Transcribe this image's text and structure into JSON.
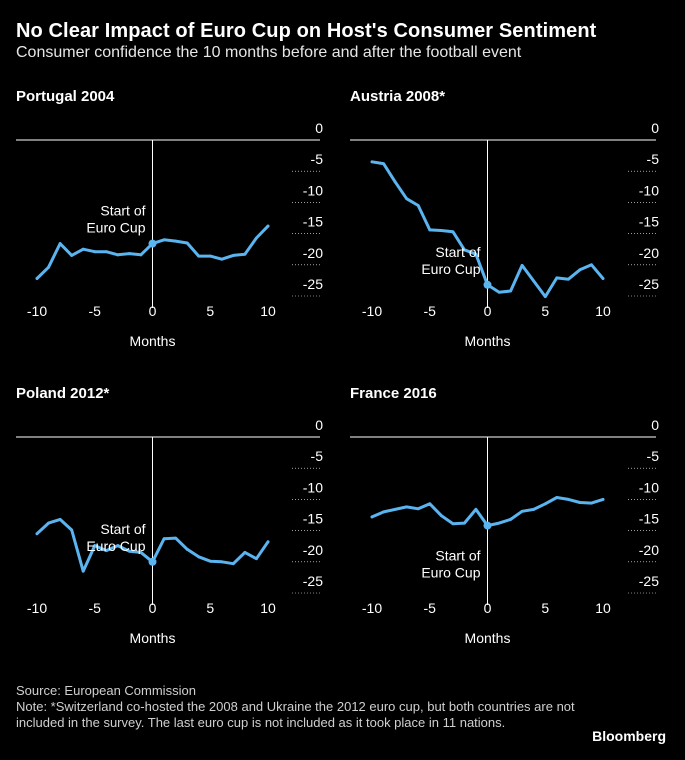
{
  "header": {
    "title": "No Clear Impact of Euro Cup on Host's Consumer Sentiment",
    "subtitle": "Consumer confidence the 10 months before and after the football event"
  },
  "footer": {
    "source": "Source: European Commission",
    "note": "Note: *Switzerland co-hosted the 2008 and Ukraine the 2012 euro cup, but both countries are not included in the survey. The last euro cup is not included as it took place in 11 nations.",
    "brand": "Bloomberg"
  },
  "colors": {
    "background": "#000000",
    "line": "#5ab4f0",
    "axis": "#ffffff",
    "grid": "#ffffff"
  },
  "chart_data": [
    {
      "type": "line",
      "title": "Portugal 2004",
      "xlabel": "Months",
      "xticks": [
        "-10",
        "-5",
        "0",
        "5",
        "10"
      ],
      "yticks": [
        "0",
        "-5",
        "-10",
        "-15",
        "-20",
        "-25"
      ],
      "xlim": [
        -10,
        10
      ],
      "ylim": [
        -27,
        0
      ],
      "annotation": [
        "Start of",
        "Euro Cup"
      ],
      "annotation_position": "above",
      "x": [
        -10,
        -9,
        -8,
        -7,
        -6,
        -5,
        -4,
        -3,
        -2,
        -1,
        0,
        1,
        2,
        3,
        4,
        5,
        6,
        7,
        8,
        9,
        10
      ],
      "values": [
        -22.2,
        -20.4,
        -16.6,
        -18.5,
        -17.5,
        -17.9,
        -17.9,
        -18.4,
        -18.2,
        -18.4,
        -16.6,
        -16.0,
        -16.2,
        -16.5,
        -18.6,
        -18.6,
        -19.1,
        -18.5,
        -18.3,
        -15.7,
        -13.8
      ]
    },
    {
      "type": "line",
      "title": "Austria 2008*",
      "xlabel": "Months",
      "xticks": [
        "-10",
        "-5",
        "0",
        "5",
        "10"
      ],
      "yticks": [
        "0",
        "-5",
        "-10",
        "-15",
        "-20",
        "-25"
      ],
      "xlim": [
        -10,
        10
      ],
      "ylim": [
        -27,
        0
      ],
      "annotation": [
        "Start of",
        "Euro Cup"
      ],
      "annotation_position": "above",
      "x": [
        -10,
        -9,
        -8,
        -7,
        -6,
        -5,
        -4,
        -3,
        -2,
        -1,
        0,
        1,
        2,
        3,
        4,
        5,
        6,
        7,
        8,
        9,
        10
      ],
      "values": [
        -3.5,
        -3.8,
        -6.7,
        -9.4,
        -10.5,
        -14.4,
        -14.5,
        -14.7,
        -17.6,
        -18.3,
        -23.2,
        -24.4,
        -24.2,
        -20.1,
        -22.6,
        -25.1,
        -22.1,
        -22.3,
        -20.8,
        -20.0,
        -22.2
      ]
    },
    {
      "type": "line",
      "title": "Poland 2012*",
      "xlabel": "Months",
      "xticks": [
        "-10",
        "-5",
        "0",
        "5",
        "10"
      ],
      "yticks": [
        "0",
        "-5",
        "-10",
        "-15",
        "-20",
        "-25"
      ],
      "xlim": [
        -10,
        10
      ],
      "ylim": [
        -27,
        0
      ],
      "annotation": [
        "Start of",
        "Euro Cup"
      ],
      "annotation_position": "above",
      "x": [
        -10,
        -9,
        -8,
        -7,
        -6,
        -5,
        -4,
        -3,
        -2,
        -1,
        0,
        1,
        2,
        3,
        4,
        5,
        6,
        7,
        8,
        9,
        10
      ],
      "values": [
        -15.5,
        -13.8,
        -13.2,
        -14.9,
        -21.5,
        -17.4,
        -18.2,
        -17.4,
        -18.3,
        -18.5,
        -20.0,
        -16.3,
        -16.2,
        -18.0,
        -19.2,
        -19.9,
        -20.0,
        -20.3,
        -18.5,
        -19.5,
        -16.8
      ]
    },
    {
      "type": "line",
      "title": "France 2016",
      "xlabel": "Months",
      "xticks": [
        "-10",
        "-5",
        "0",
        "5",
        "10"
      ],
      "yticks": [
        "0",
        "-5",
        "-10",
        "-15",
        "-20",
        "-25"
      ],
      "xlim": [
        -10,
        10
      ],
      "ylim": [
        -27,
        0
      ],
      "annotation": [
        "Start of",
        "Euro Cup"
      ],
      "annotation_position": "below",
      "x": [
        -10,
        -9,
        -8,
        -7,
        -6,
        -5,
        -4,
        -3,
        -2,
        -1,
        0,
        1,
        2,
        3,
        4,
        5,
        6,
        7,
        8,
        9,
        10
      ],
      "values": [
        -12.8,
        -12.0,
        -11.6,
        -11.2,
        -11.5,
        -10.7,
        -12.6,
        -13.9,
        -13.8,
        -11.6,
        -14.2,
        -13.8,
        -13.2,
        -11.9,
        -11.6,
        -10.7,
        -9.7,
        -10.0,
        -10.5,
        -10.6,
        -10.0
      ]
    }
  ]
}
